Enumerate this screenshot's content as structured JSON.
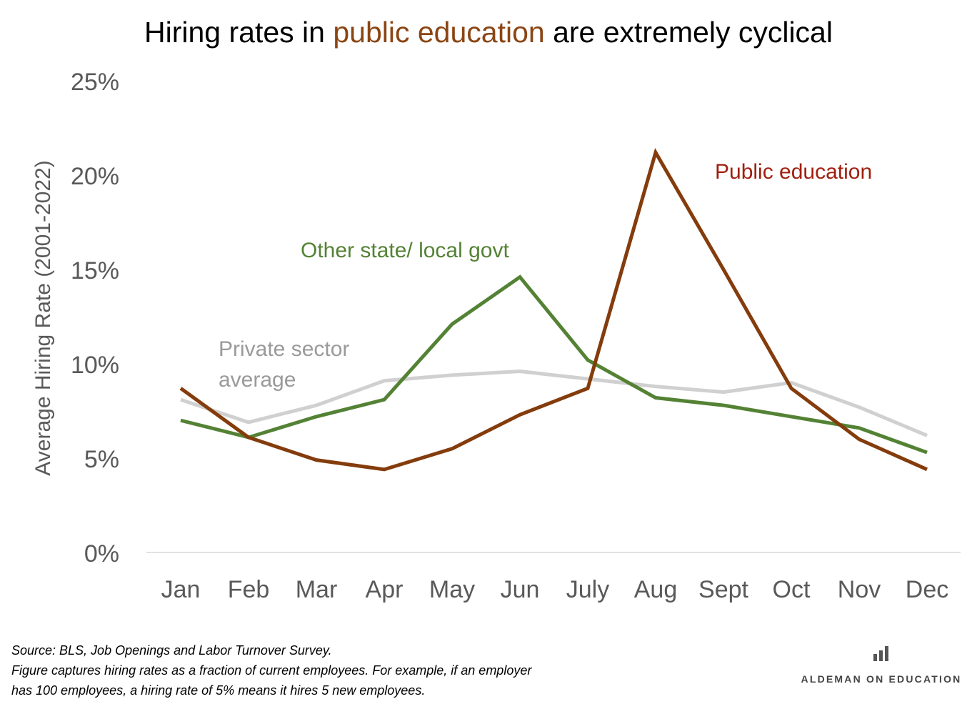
{
  "title": {
    "prefix": "Hiring rates in ",
    "highlight": "public education",
    "suffix": " are extremely cyclical",
    "highlight_color": "#8B4513"
  },
  "chart_data": {
    "type": "line",
    "ylabel": "Average Hiring Rate (2001-2022)",
    "categories": [
      "Jan",
      "Feb",
      "Mar",
      "Apr",
      "May",
      "Jun",
      "July",
      "Aug",
      "Sept",
      "Oct",
      "Nov",
      "Dec"
    ],
    "ylim": [
      0,
      25
    ],
    "yticks": [
      0,
      5,
      10,
      15,
      20,
      25
    ],
    "ytick_labels": [
      "0%",
      "5%",
      "10%",
      "15%",
      "20%",
      "25%"
    ],
    "grid": false,
    "series": [
      {
        "name": "Private sector average",
        "label_lines": [
          "Private sector",
          "average"
        ],
        "color": "#D0D0D0",
        "label_color": "#9A9A9A",
        "values": [
          8.1,
          6.9,
          7.8,
          9.1,
          9.4,
          9.6,
          9.2,
          8.8,
          8.5,
          9.0,
          7.7,
          6.2
        ]
      },
      {
        "name": "Other state/ local govt",
        "label_lines": [
          "Other state/ local govt"
        ],
        "color": "#548235",
        "label_color": "#548235",
        "values": [
          7.0,
          6.1,
          7.2,
          8.1,
          12.1,
          14.6,
          10.2,
          8.2,
          7.8,
          7.2,
          6.6,
          5.3
        ]
      },
      {
        "name": "Public education",
        "label_lines": [
          "Public education"
        ],
        "color": "#843C0C",
        "label_color": "#A0200F",
        "values": [
          8.7,
          6.1,
          4.9,
          4.4,
          5.5,
          7.3,
          8.7,
          21.2,
          15.0,
          8.7,
          6.0,
          4.4
        ]
      }
    ]
  },
  "footer": {
    "source": "Source: BLS, Job Openings and Labor Turnover Survey.",
    "note_line1": "Figure captures hiring rates as a fraction of current employees. For example, if an employer",
    "note_line2": "has 100 employees, a hiring  rate of 5% means it hires 5 new employees."
  },
  "brand": {
    "name": "ALDEMAN ON EDUCATION",
    "icon": "bar-chart-icon",
    "icon_color": "#555555"
  }
}
